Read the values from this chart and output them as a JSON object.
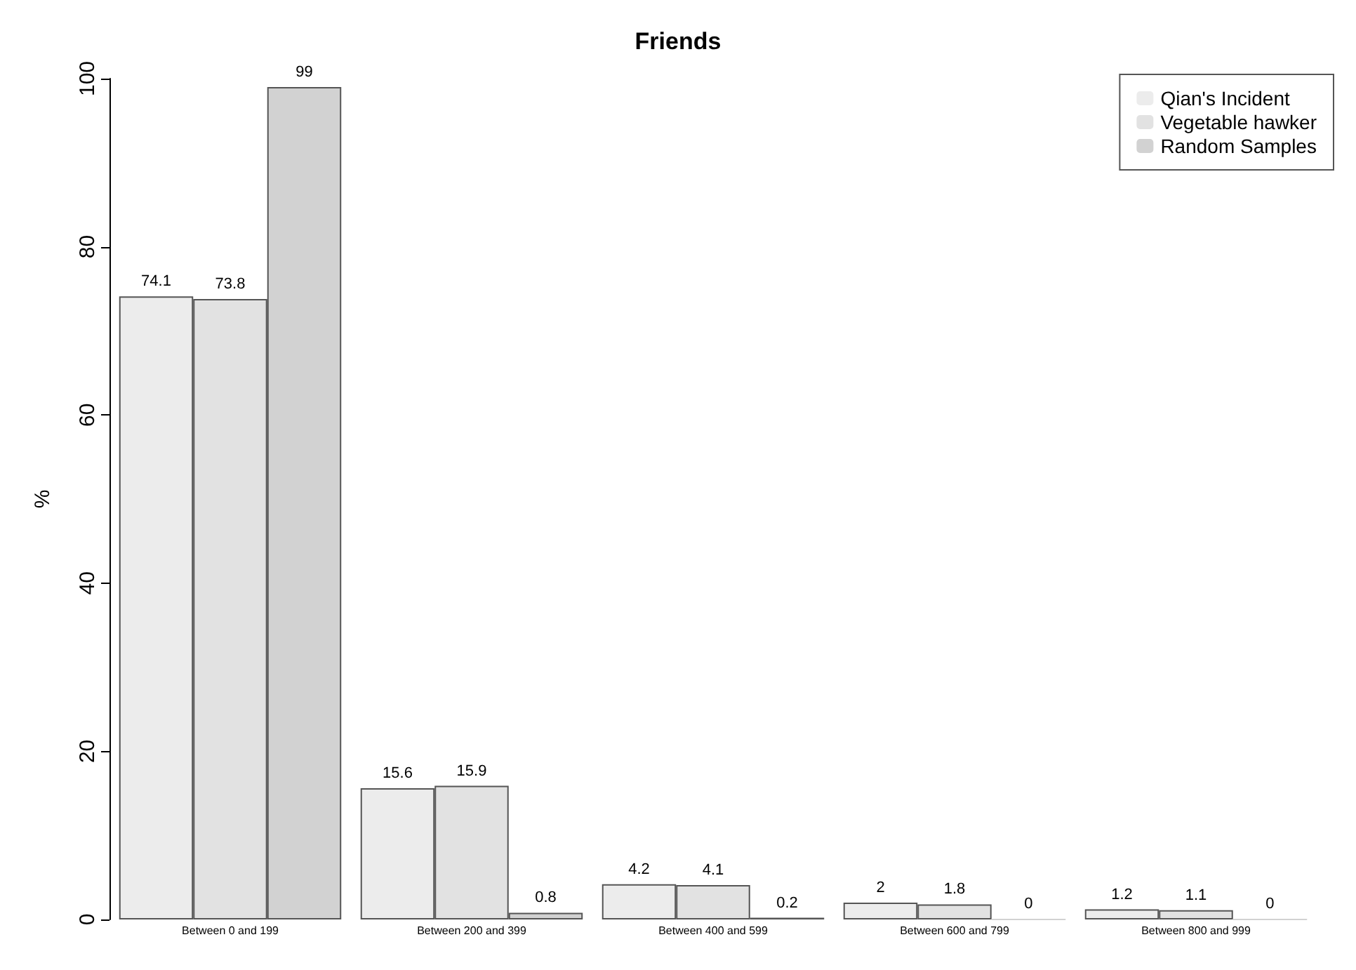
{
  "chart_data": {
    "type": "bar",
    "title": "Friends",
    "ylabel": "%",
    "categories": [
      "Between 0 and 199",
      "Between 200 and 399",
      "Between 400 and 599",
      "Between 600 and 799",
      "Between 800 and 999"
    ],
    "series": [
      {
        "name": "Qian's Incident",
        "color": "#ececec",
        "values": [
          74.1,
          15.6,
          4.2,
          2,
          1.2
        ]
      },
      {
        "name": "Vegetable hawker",
        "color": "#e2e2e2",
        "values": [
          73.8,
          15.9,
          4.1,
          1.8,
          1.1
        ]
      },
      {
        "name": "Random Samples",
        "color": "#d2d2d2",
        "values": [
          99,
          0.8,
          0.2,
          0,
          0
        ]
      }
    ],
    "ylim": [
      0,
      100
    ],
    "yticks": [
      0,
      20,
      40,
      60,
      80,
      100
    ],
    "grid": false,
    "legend": "top right",
    "data_labels": true
  }
}
